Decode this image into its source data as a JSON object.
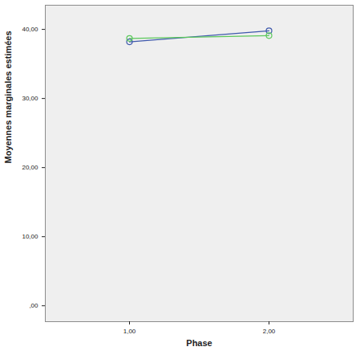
{
  "chart_data": {
    "type": "line",
    "x_label": "Phase",
    "y_label": "Moyennes marginales estimées",
    "categories": [
      "1,00",
      "2,00"
    ],
    "series": [
      {
        "color": "#3e58ac",
        "values": [
          38.2,
          39.8
        ],
        "marker": "circle"
      },
      {
        "color": "#5bc85b",
        "values": [
          38.7,
          39.1
        ],
        "marker": "circle"
      }
    ],
    "ylim": [
      -2.3,
      43.5
    ],
    "yticks": [
      {
        "value": 0,
        "label": ",00"
      },
      {
        "value": 10,
        "label": "10,00"
      },
      {
        "value": 20,
        "label": "20,00"
      },
      {
        "value": 30,
        "label": "30,00"
      },
      {
        "value": 40,
        "label": "40,00"
      }
    ],
    "grid": false
  }
}
